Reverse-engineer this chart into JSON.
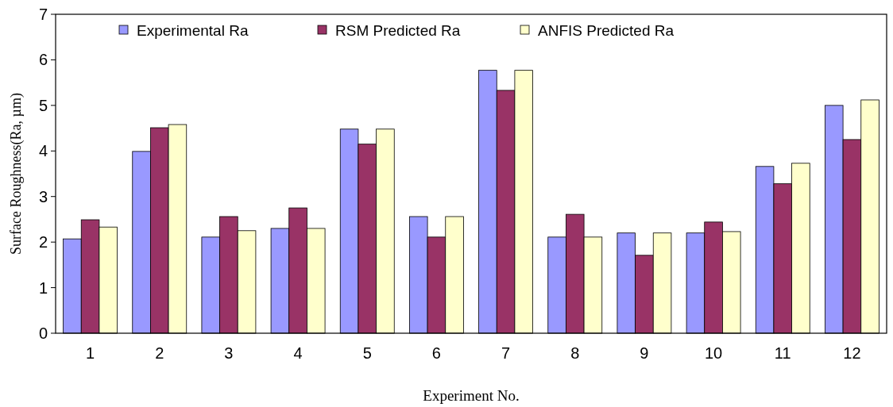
{
  "chart_data": {
    "type": "bar",
    "xlabel": "Experiment No.",
    "ylabel": "Surface Roughness(Ra, µm)",
    "categories": [
      "1",
      "2",
      "3",
      "4",
      "5",
      "6",
      "7",
      "8",
      "9",
      "10",
      "11",
      "12"
    ],
    "series": [
      {
        "name": "Experimental Ra",
        "color": "#9999ff",
        "values": [
          2.07,
          3.99,
          2.11,
          2.3,
          4.48,
          2.56,
          5.77,
          2.11,
          2.2,
          2.2,
          3.66,
          5.0
        ]
      },
      {
        "name": "RSM Predicted Ra",
        "color": "#993366",
        "values": [
          2.49,
          4.51,
          2.56,
          2.75,
          4.15,
          2.11,
          5.33,
          2.61,
          1.71,
          2.44,
          3.28,
          4.25
        ]
      },
      {
        "name": "ANFIS Predicted Ra",
        "color": "#ffffcc",
        "values": [
          2.33,
          4.58,
          2.25,
          2.3,
          4.48,
          2.56,
          5.77,
          2.11,
          2.2,
          2.23,
          3.73,
          5.12
        ]
      }
    ],
    "ylim": [
      0,
      7
    ],
    "yticks": [
      0,
      1,
      2,
      3,
      4,
      5,
      6,
      7
    ],
    "grid": false,
    "legend": "top"
  }
}
